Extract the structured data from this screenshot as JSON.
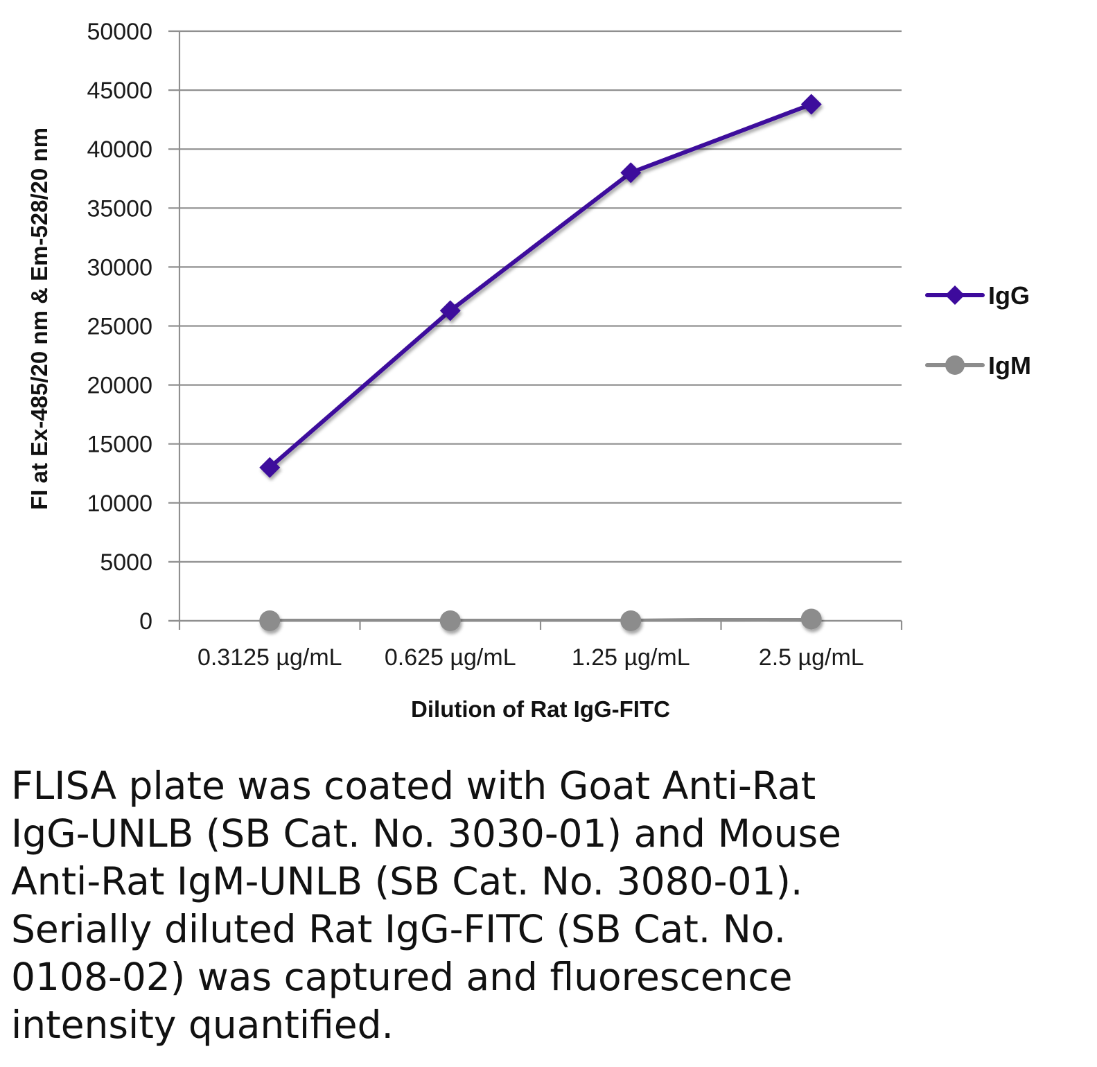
{
  "chart_data": {
    "type": "line",
    "title": "",
    "xlabel": "Dilution of Rat IgG-FITC",
    "ylabel": "FI at Ex-485/20 nm & Em-528/20 nm",
    "categories": [
      "0.3125 µg/mL",
      "0.625 µg/mL",
      "1.25 µg/mL",
      "2.5 µg/mL"
    ],
    "ylim": [
      0,
      50000
    ],
    "yticks": [
      0,
      5000,
      10000,
      15000,
      20000,
      25000,
      30000,
      35000,
      40000,
      45000,
      50000
    ],
    "grid": true,
    "legend_position": "right",
    "series": [
      {
        "name": "IgG",
        "values": [
          13000,
          26300,
          38000,
          43800
        ],
        "color": "#3d0a9c",
        "marker": "diamond"
      },
      {
        "name": "IgM",
        "values": [
          0,
          0,
          0,
          150
        ],
        "color": "#8c8c8c",
        "marker": "circle"
      }
    ]
  },
  "caption": {
    "lines": [
      "FLISA plate was coated with Goat Anti-Rat",
      "IgG-UNLB (SB Cat. No. 3030-01) and Mouse",
      "Anti-Rat IgM-UNLB (SB Cat. No. 3080-01).",
      "Serially diluted Rat IgG-FITC (SB Cat. No.",
      "0108-02) was captured and fluorescence",
      "intensity quantified."
    ]
  }
}
